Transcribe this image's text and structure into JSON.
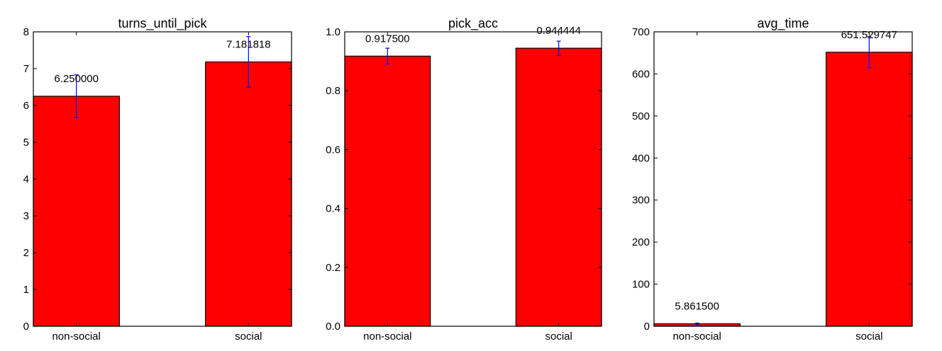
{
  "chart_data": [
    {
      "type": "bar",
      "title": "turns_until_pick",
      "categories": [
        "non-social",
        "social"
      ],
      "values": [
        6.25,
        7.181818
      ],
      "errors": [
        0.58,
        0.69
      ],
      "value_labels": [
        "6.250000",
        "7.181818"
      ],
      "ylim": [
        0,
        8
      ],
      "yticks": [
        "0",
        "1",
        "2",
        "3",
        "4",
        "5",
        "6",
        "7",
        "8"
      ],
      "xlabel": "",
      "ylabel": "",
      "grid": false
    },
    {
      "type": "bar",
      "title": "pick_acc",
      "categories": [
        "non-social",
        "social"
      ],
      "values": [
        0.9175,
        0.944444
      ],
      "errors": [
        0.027,
        0.024
      ],
      "value_labels": [
        "0.917500",
        "0.944444"
      ],
      "ylim": [
        0,
        1.0
      ],
      "yticks": [
        "0.0",
        "0.2",
        "0.4",
        "0.6",
        "0.8",
        "1.0"
      ],
      "xlabel": "",
      "ylabel": "",
      "grid": false
    },
    {
      "type": "bar",
      "title": "avg_time",
      "categories": [
        "non-social",
        "social"
      ],
      "values": [
        5.8615,
        651.529747
      ],
      "errors": [
        1.5,
        37
      ],
      "value_labels": [
        "5.861500",
        "651.529747"
      ],
      "ylim": [
        0,
        700
      ],
      "yticks": [
        "0",
        "100",
        "200",
        "300",
        "400",
        "500",
        "600",
        "700"
      ],
      "xlabel": "",
      "ylabel": "",
      "grid": false
    }
  ],
  "colors": {
    "bar_fill": "#ff0000",
    "bar_edge": "#000000",
    "error_bar": "#0000ff",
    "axes": "#000000"
  }
}
